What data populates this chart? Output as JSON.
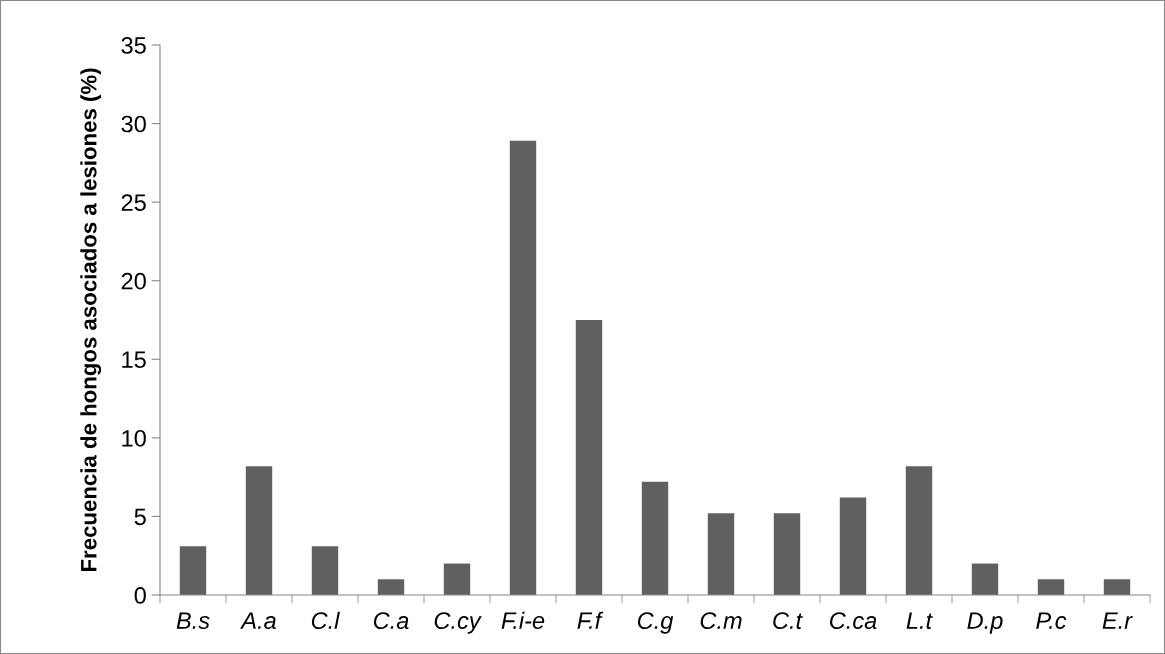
{
  "chart_data": {
    "type": "bar",
    "ylabel": "Frecuencia de hongos asociados a lesiones (%)",
    "categories": [
      "B.s",
      "A.a",
      "C.l",
      "C.a",
      "C.cy",
      "F.i-e",
      "F.f",
      "C.g",
      "C.m",
      "C.t",
      "C.ca",
      "L.t",
      "D.p",
      "P.c",
      "E.r"
    ],
    "values": [
      3.1,
      8.2,
      3.1,
      1,
      2,
      28.9,
      17.5,
      7.2,
      5.2,
      5.2,
      6.2,
      8.2,
      2,
      1,
      1
    ],
    "color": "#606060",
    "ylim": [
      0,
      35
    ],
    "yticks": [
      0,
      5,
      10,
      15,
      20,
      25,
      30,
      35
    ],
    "grid": false,
    "legend": false
  }
}
